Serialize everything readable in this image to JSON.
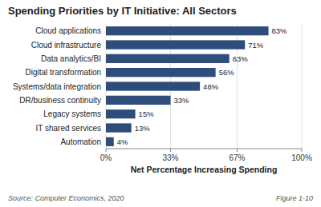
{
  "chart_data": {
    "type": "bar",
    "orientation": "horizontal",
    "title": "Spending Priorities by IT Initiative: All Sectors",
    "categories": [
      "Cloud applications",
      "Cloud infrastructure",
      "Data analytics/BI",
      "Digital transformation",
      "Systems/data integration",
      "DR/business continuity",
      "Legacy systems",
      "IT shared services",
      "Automation"
    ],
    "values": [
      83,
      71,
      63,
      56,
      48,
      33,
      15,
      13,
      4
    ],
    "value_labels": [
      "83%",
      "71%",
      "63%",
      "56%",
      "48%",
      "33%",
      "15%",
      "13%",
      "4%"
    ],
    "data_labels": true,
    "color": "#2E4D7B",
    "x_label": "Net Percentage Increasing Spending",
    "xlim": [
      0,
      100
    ],
    "xticks": [
      {
        "value": 0,
        "label": "0%"
      },
      {
        "value": 33,
        "label": "33%"
      },
      {
        "value": 67,
        "label": "67%"
      },
      {
        "value": 100,
        "label": "100%"
      }
    ],
    "grid": true,
    "annotations": [
      "Source: Computer Economics, 2020",
      "Figure 1-10"
    ]
  }
}
